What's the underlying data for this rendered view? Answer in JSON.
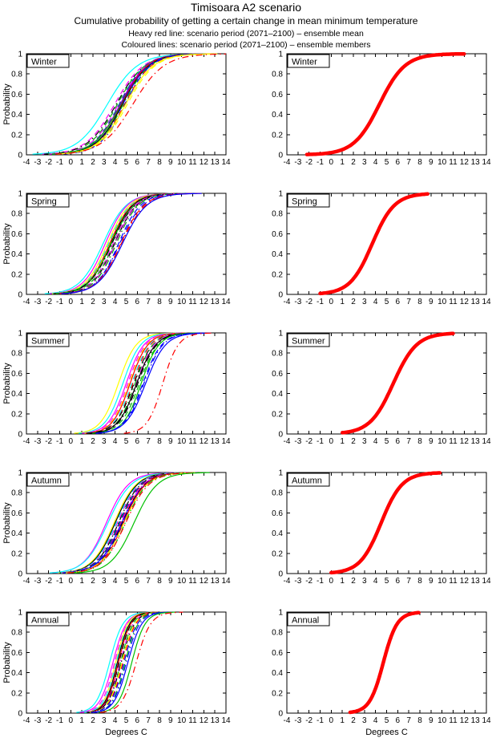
{
  "header": {
    "title": "Timisoara A2 scenario",
    "subtitle": "Cumulative probability of getting a certain change in mean minimum temperature",
    "note_mean": "Heavy red line: scenario period (2071–2100) – ensemble mean",
    "note_members": "Coloured lines: scenario period (2071–2100) – ensemble members"
  },
  "chart_data": {
    "type": "line",
    "title": "Timisoara A2 scenario",
    "xlabel": "Degrees C",
    "ylabel": "Probability",
    "xlim": [
      -4,
      14
    ],
    "ylim": [
      0,
      1
    ],
    "xticks": [
      -4,
      -3,
      -2,
      -1,
      0,
      1,
      2,
      3,
      4,
      5,
      6,
      7,
      8,
      9,
      10,
      11,
      12,
      13,
      14
    ],
    "yticks": [
      0,
      0.2,
      0.4,
      0.6,
      0.8,
      1
    ],
    "grid": false,
    "legend_position": "none",
    "panel_grid": {
      "rows": 5,
      "cols": 2,
      "left_col": "ensemble members (coloured lines)",
      "right_col": "ensemble mean (heavy red line)"
    },
    "curve_model": "cumulative probability: y = 1/(1+exp(-(x-mu)/s))",
    "colors": {
      "y": "#ffff00",
      "m": "#ff00ff",
      "c": "#00ffff",
      "r": "#ff0000",
      "g": "#00c000",
      "b": "#0000ff",
      "k": "#000000"
    },
    "mean_line": {
      "color": "#ff0000",
      "width": 4.5
    },
    "member_line_width": 1.2,
    "rows": [
      {
        "season": "Winter",
        "members": [
          [
            "c",
            "solid",
            3.3,
            1.35
          ],
          [
            "m",
            "dash",
            3.95,
            1.3
          ],
          [
            "k",
            "dashdot",
            4.1,
            1.3
          ],
          [
            "g",
            "dash",
            4.2,
            1.25
          ],
          [
            "m",
            "dashdot",
            4.3,
            1.25
          ],
          [
            "c",
            "dash",
            4.35,
            1.2
          ],
          [
            "k",
            "dash",
            4.4,
            1.2
          ],
          [
            "m",
            "solid",
            4.45,
            1.2
          ],
          [
            "b",
            "solid",
            4.5,
            1.2
          ],
          [
            "g",
            "solid",
            4.55,
            1.25
          ],
          [
            "r",
            "solid",
            4.6,
            1.15
          ],
          [
            "k",
            "solid",
            4.65,
            1.2
          ],
          [
            "b",
            "dash",
            4.7,
            1.15
          ],
          [
            "g",
            "dashdot",
            4.75,
            1.2
          ],
          [
            "r",
            "dash",
            4.85,
            1.2
          ],
          [
            "b",
            "dashdot",
            4.9,
            1.15
          ],
          [
            "y",
            "solid",
            4.95,
            1.25
          ],
          [
            "y",
            "dash",
            5.1,
            1.25
          ],
          [
            "r",
            "dashdot",
            5.6,
            1.4
          ]
        ],
        "mean": {
          "mu": 4.35,
          "s": 1.15,
          "x0": -2.2,
          "x1": 12.0
        }
      },
      {
        "season": "Spring",
        "members": [
          [
            "c",
            "solid",
            2.9,
            1.05
          ],
          [
            "m",
            "solid",
            3.1,
            1.0
          ],
          [
            "y",
            "solid",
            3.3,
            1.0
          ],
          [
            "c",
            "dash",
            3.4,
            1.0
          ],
          [
            "r",
            "solid",
            3.5,
            1.0
          ],
          [
            "y",
            "dash",
            3.55,
            1.0
          ],
          [
            "k",
            "solid",
            3.6,
            1.0
          ],
          [
            "g",
            "solid",
            3.65,
            1.05
          ],
          [
            "k",
            "dashdot",
            3.7,
            1.05
          ],
          [
            "m",
            "dash",
            3.8,
            1.0
          ],
          [
            "g",
            "dash",
            3.9,
            1.05
          ],
          [
            "k",
            "dash",
            3.95,
            1.0
          ],
          [
            "m",
            "dashdot",
            4.0,
            1.0
          ],
          [
            "g",
            "dashdot",
            4.1,
            1.0
          ],
          [
            "b",
            "dash",
            4.3,
            1.0
          ],
          [
            "b",
            "dashdot",
            4.4,
            1.05
          ],
          [
            "r",
            "dash",
            4.5,
            1.05
          ],
          [
            "r",
            "dashdot",
            4.55,
            1.1
          ],
          [
            "b",
            "solid",
            4.65,
            1.1
          ]
        ],
        "mean": {
          "mu": 3.7,
          "s": 1.0,
          "x0": -1.0,
          "x1": 8.7
        }
      },
      {
        "season": "Summer",
        "members": [
          [
            "y",
            "solid",
            4.3,
            0.8
          ],
          [
            "c",
            "solid",
            4.7,
            0.8
          ],
          [
            "m",
            "solid",
            5.0,
            0.8
          ],
          [
            "m",
            "dash",
            5.15,
            0.8
          ],
          [
            "y",
            "dash",
            5.25,
            0.8
          ],
          [
            "r",
            "solid",
            5.35,
            0.8
          ],
          [
            "c",
            "dash",
            5.5,
            0.8
          ],
          [
            "r",
            "dash",
            5.6,
            0.8
          ],
          [
            "k",
            "dash",
            5.7,
            0.85
          ],
          [
            "g",
            "dashdot",
            5.8,
            0.8
          ],
          [
            "m",
            "dashdot",
            5.9,
            0.8
          ],
          [
            "k",
            "solid",
            5.95,
            0.85
          ],
          [
            "k",
            "dashdot",
            6.05,
            0.85
          ],
          [
            "g",
            "dash",
            6.2,
            0.85
          ],
          [
            "g",
            "solid",
            6.35,
            0.8
          ],
          [
            "b",
            "dash",
            6.5,
            0.85
          ],
          [
            "b",
            "dashdot",
            6.6,
            0.85
          ],
          [
            "b",
            "solid",
            6.75,
            0.9
          ],
          [
            "r",
            "dashdot",
            8.3,
            0.7
          ]
        ],
        "mean": {
          "mu": 5.6,
          "s": 1.05,
          "x0": 1.0,
          "x1": 11.0
        }
      },
      {
        "season": "Autumn",
        "members": [
          [
            "m",
            "solid",
            3.2,
            1.0
          ],
          [
            "c",
            "solid",
            3.35,
            1.05
          ],
          [
            "y",
            "solid",
            3.9,
            1.0
          ],
          [
            "k",
            "solid",
            4.0,
            1.0
          ],
          [
            "c",
            "dash",
            4.1,
            1.0
          ],
          [
            "m",
            "dash",
            4.2,
            1.0
          ],
          [
            "k",
            "dashdot",
            4.3,
            1.0
          ],
          [
            "g",
            "dash",
            4.35,
            1.0
          ],
          [
            "b",
            "dash",
            4.4,
            1.0
          ],
          [
            "r",
            "dash",
            4.5,
            1.0
          ],
          [
            "m",
            "dashdot",
            4.55,
            1.0
          ],
          [
            "b",
            "solid",
            4.6,
            1.05
          ],
          [
            "k",
            "dash",
            4.65,
            1.0
          ],
          [
            "b",
            "dashdot",
            4.7,
            1.0
          ],
          [
            "r",
            "solid",
            4.75,
            1.0
          ],
          [
            "y",
            "dash",
            4.8,
            1.05
          ],
          [
            "g",
            "dashdot",
            4.9,
            1.0
          ],
          [
            "r",
            "dashdot",
            4.95,
            1.05
          ],
          [
            "g",
            "solid",
            5.7,
            1.05
          ]
        ],
        "mean": {
          "mu": 4.5,
          "s": 0.95,
          "x0": 0.0,
          "x1": 9.8
        }
      },
      {
        "season": "Annual",
        "members": [
          [
            "c",
            "solid",
            3.5,
            0.6
          ],
          [
            "m",
            "solid",
            3.8,
            0.6
          ],
          [
            "m",
            "dash",
            3.95,
            0.58
          ],
          [
            "y",
            "solid",
            4.05,
            0.55
          ],
          [
            "c",
            "dash",
            4.1,
            0.58
          ],
          [
            "k",
            "solid",
            4.2,
            0.55
          ],
          [
            "r",
            "solid",
            4.3,
            0.55
          ],
          [
            "k",
            "dash",
            4.35,
            0.55
          ],
          [
            "m",
            "dashdot",
            4.45,
            0.58
          ],
          [
            "g",
            "dash",
            4.5,
            0.55
          ],
          [
            "k",
            "dashdot",
            4.55,
            0.6
          ],
          [
            "y",
            "dash",
            4.6,
            0.58
          ],
          [
            "r",
            "dash",
            4.7,
            0.58
          ],
          [
            "b",
            "dash",
            4.8,
            0.6
          ],
          [
            "g",
            "dashdot",
            4.9,
            0.58
          ],
          [
            "b",
            "dashdot",
            5.0,
            0.6
          ],
          [
            "b",
            "solid",
            5.15,
            0.62
          ],
          [
            "g",
            "solid",
            5.5,
            0.6
          ],
          [
            "r",
            "dashdot",
            5.9,
            0.65
          ]
        ],
        "mean": {
          "mu": 4.7,
          "s": 0.62,
          "x0": 1.7,
          "x1": 7.9
        }
      }
    ]
  }
}
